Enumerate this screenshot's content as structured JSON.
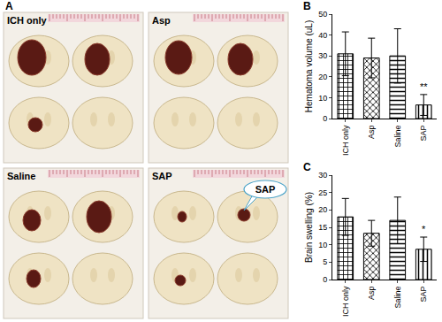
{
  "panel_a": {
    "label": "A",
    "photos": [
      {
        "label": "ICH only"
      },
      {
        "label": "Asp"
      },
      {
        "label": "Saline"
      },
      {
        "label": "SAP",
        "callout": "SAP"
      }
    ]
  },
  "chart_data": [
    {
      "type": "bar",
      "title": "B",
      "y_label": "Hematoma volume (uL)",
      "categories": [
        "ICH only",
        "Asp",
        "Saline",
        "SAP"
      ],
      "values": [
        31,
        29,
        30,
        6.5
      ],
      "errors": [
        10.5,
        9.5,
        13,
        5
      ],
      "color": "#ffffff",
      "ylim": [
        0,
        50
      ],
      "yticks": [
        0,
        10,
        20,
        30,
        40,
        50
      ],
      "grid": false,
      "annotations": [
        {
          "category": "SAP",
          "text": "**"
        }
      ]
    },
    {
      "type": "bar",
      "title": "C",
      "y_label": "Brain swelling (%)",
      "categories": [
        "ICH only",
        "Asp",
        "Saline",
        "SAP"
      ],
      "values": [
        18,
        13.3,
        17,
        8.7
      ],
      "errors": [
        5.3,
        3.7,
        6.7,
        3.5
      ],
      "color": "#ffffff",
      "ylim": [
        0,
        30
      ],
      "yticks": [
        0,
        5,
        10,
        15,
        20,
        25,
        30
      ],
      "grid": false,
      "annotations": [
        {
          "category": "SAP",
          "text": "*"
        }
      ]
    }
  ]
}
